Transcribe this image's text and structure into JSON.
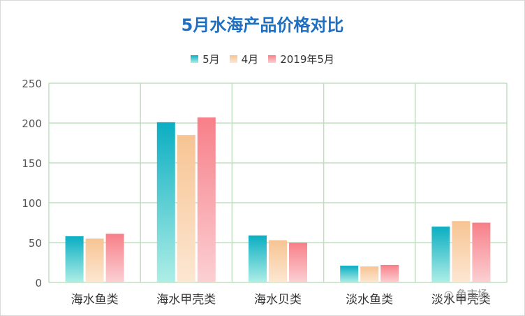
{
  "chart_data": {
    "type": "bar",
    "title": "5月水海产品价格对比",
    "categories": [
      "海水鱼类",
      "海水甲壳类",
      "海水贝类",
      "淡水鱼类",
      "淡水甲壳类"
    ],
    "series": [
      {
        "name": "5月",
        "values": [
          58,
          201,
          59,
          21,
          70
        ],
        "color": "#0aaec2",
        "color_light": "#aeeee6"
      },
      {
        "name": "4月",
        "values": [
          55,
          185,
          53,
          20,
          77
        ],
        "color": "#f7c493",
        "color_light": "#fce7d2"
      },
      {
        "name": "2019年5月",
        "values": [
          61,
          207,
          50,
          22,
          75
        ],
        "color": "#f77f89",
        "color_light": "#fbd0d3"
      }
    ],
    "ylim": [
      0,
      250
    ],
    "yticks": [
      0,
      50,
      100,
      150,
      200,
      250
    ],
    "grid": true,
    "legend_position": "top"
  },
  "watermark": "鱼市场"
}
